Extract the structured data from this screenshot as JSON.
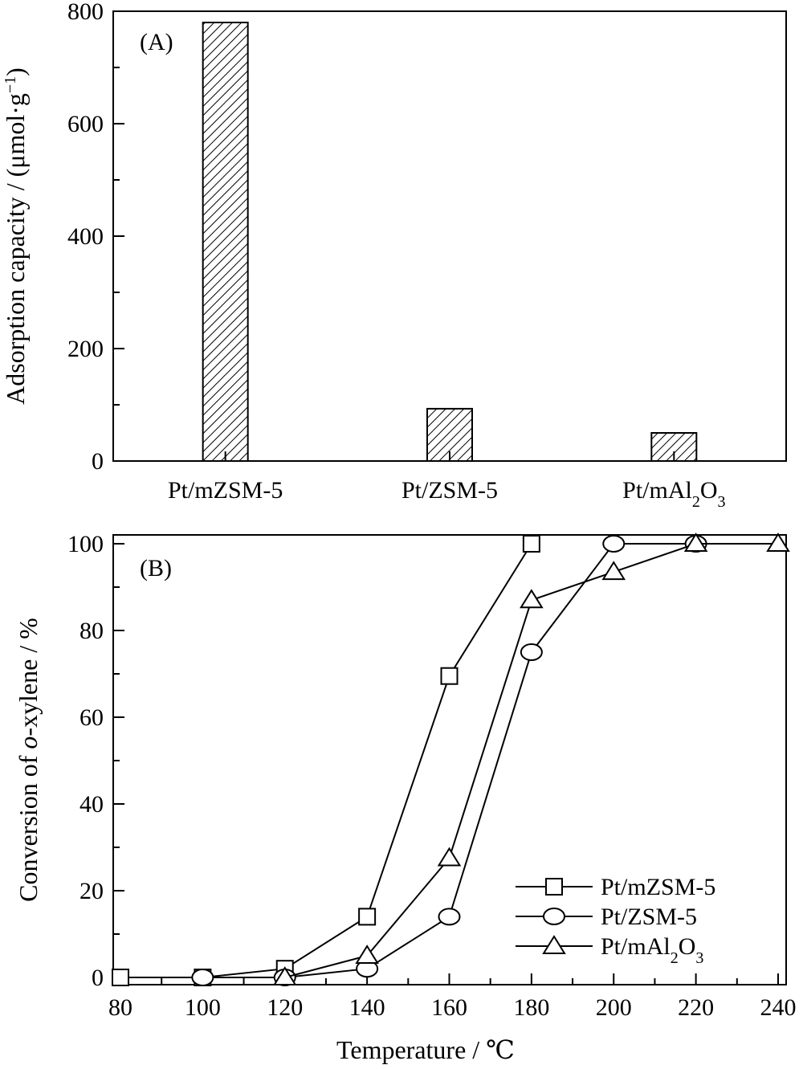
{
  "chart_data": [
    {
      "type": "bar",
      "panel_label": "(A)",
      "ylabel_main": "Adsorption capacity / (μmol·g",
      "ylabel_sup": "−1",
      "ylabel_end": ")",
      "ylim": [
        0,
        800
      ],
      "yticks": [
        "0",
        "200",
        "400",
        "600",
        "800"
      ],
      "categories": [
        {
          "base": "Pt/mZSM-5",
          "sub1": "",
          "mid": "",
          "sub2": ""
        },
        {
          "base": "Pt/ZSM-5",
          "sub1": "",
          "mid": "",
          "sub2": ""
        },
        {
          "base": "Pt/mAl",
          "sub1": "2",
          "mid": "O",
          "sub2": "3"
        }
      ],
      "values": [
        780,
        93,
        50
      ],
      "fill": "hatched"
    },
    {
      "type": "line",
      "panel_label": "(B)",
      "xlabel": "Temperature / ℃",
      "ylabel_pre": "Conversion of ",
      "ylabel_ital": "o",
      "ylabel_post": "-xylene / %",
      "xlim": [
        80,
        240
      ],
      "ylim": [
        0,
        100
      ],
      "xticks": [
        "80",
        "100",
        "120",
        "140",
        "160",
        "180",
        "200",
        "220",
        "240"
      ],
      "yticks": [
        "0",
        "20",
        "40",
        "60",
        "80",
        "100"
      ],
      "legend_position": "bottom-right",
      "series": [
        {
          "base": "Pt/mZSM-5",
          "sub1": "",
          "mid": "",
          "sub2": "",
          "marker": "square",
          "x": [
            80,
            100,
            120,
            140,
            160,
            180
          ],
          "y": [
            0,
            0,
            2,
            14,
            69.5,
            100
          ]
        },
        {
          "base": "Pt/ZSM-5",
          "sub1": "",
          "mid": "",
          "sub2": "",
          "marker": "circle",
          "x": [
            100,
            120,
            140,
            160,
            180,
            200,
            220
          ],
          "y": [
            0,
            0,
            2,
            14,
            75,
            100,
            100
          ]
        },
        {
          "base": "Pt/mAl",
          "sub1": "2",
          "mid": "O",
          "sub2": "3",
          "marker": "triangle",
          "x": [
            120,
            140,
            160,
            180,
            200,
            220,
            240
          ],
          "y": [
            0,
            5,
            27.5,
            87,
            93.5,
            100,
            100
          ]
        }
      ]
    }
  ]
}
